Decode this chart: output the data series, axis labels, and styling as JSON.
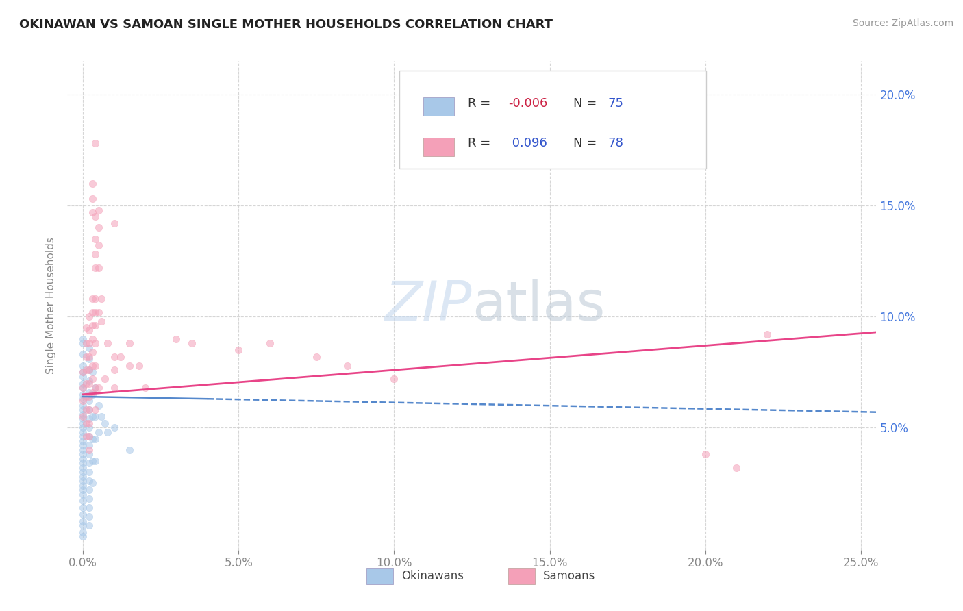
{
  "title": "OKINAWAN VS SAMOAN SINGLE MOTHER HOUSEHOLDS CORRELATION CHART",
  "source": "Source: ZipAtlas.com",
  "ylabel": "Single Mother Households",
  "legend_labels": [
    "Okinawans",
    "Samoans"
  ],
  "okinawan_color": "#a8c8e8",
  "samoan_color": "#f4a0b8",
  "okinawan_line_color": "#5588cc",
  "samoan_line_color": "#e84488",
  "title_color": "#222222",
  "source_color": "#999999",
  "legend_text_color": "#3355cc",
  "legend_rvalue_color": "#cc2244",
  "background_color": "#ffffff",
  "plot_bg_color": "#ffffff",
  "xlim": [
    -0.005,
    0.255
  ],
  "ylim": [
    -0.005,
    0.215
  ],
  "xticks": [
    0.0,
    0.05,
    0.1,
    0.15,
    0.2,
    0.25
  ],
  "yticks": [
    0.05,
    0.1,
    0.15,
    0.2
  ],
  "xticklabels": [
    "0.0%",
    "5.0%",
    "10.0%",
    "15.0%",
    "20.0%",
    "25.0%"
  ],
  "yticklabels": [
    "5.0%",
    "10.0%",
    "15.0%",
    "20.0%"
  ],
  "right_yticklabels": [
    "5.0%",
    "10.0%",
    "15.0%",
    "20.0%"
  ],
  "watermark_zip": "ZIP",
  "watermark_atlas": "atlas",
  "ok_line_solid": [
    [
      0.0,
      0.064
    ],
    [
      0.04,
      0.063
    ]
  ],
  "ok_line_dash": [
    [
      0.04,
      0.063
    ],
    [
      0.255,
      0.057
    ]
  ],
  "sa_line": [
    [
      0.0,
      0.065
    ],
    [
      0.255,
      0.093
    ]
  ],
  "grid_color": "#cccccc",
  "tick_color": "#888888",
  "ytick_color": "#4477dd",
  "tick_fontsize": 12,
  "title_fontsize": 13,
  "source_fontsize": 10,
  "ylabel_fontsize": 11,
  "dot_size": 55,
  "dot_alpha": 0.55,
  "okinawan_scatter": [
    [
      0.0,
      0.09
    ],
    [
      0.0,
      0.088
    ],
    [
      0.0,
      0.083
    ],
    [
      0.0,
      0.078
    ],
    [
      0.0,
      0.075
    ],
    [
      0.0,
      0.073
    ],
    [
      0.0,
      0.07
    ],
    [
      0.0,
      0.068
    ],
    [
      0.0,
      0.065
    ],
    [
      0.0,
      0.063
    ],
    [
      0.0,
      0.06
    ],
    [
      0.0,
      0.058
    ],
    [
      0.0,
      0.056
    ],
    [
      0.0,
      0.054
    ],
    [
      0.0,
      0.052
    ],
    [
      0.0,
      0.05
    ],
    [
      0.0,
      0.048
    ],
    [
      0.0,
      0.046
    ],
    [
      0.0,
      0.044
    ],
    [
      0.0,
      0.042
    ],
    [
      0.0,
      0.04
    ],
    [
      0.0,
      0.038
    ],
    [
      0.0,
      0.036
    ],
    [
      0.0,
      0.034
    ],
    [
      0.0,
      0.032
    ],
    [
      0.0,
      0.03
    ],
    [
      0.0,
      0.028
    ],
    [
      0.0,
      0.026
    ],
    [
      0.0,
      0.024
    ],
    [
      0.0,
      0.022
    ],
    [
      0.0,
      0.02
    ],
    [
      0.0,
      0.017
    ],
    [
      0.0,
      0.014
    ],
    [
      0.0,
      0.011
    ],
    [
      0.0,
      0.008
    ],
    [
      0.0,
      0.006
    ],
    [
      0.0,
      0.003
    ],
    [
      0.0,
      0.001
    ],
    [
      0.002,
      0.086
    ],
    [
      0.002,
      0.081
    ],
    [
      0.002,
      0.076
    ],
    [
      0.002,
      0.071
    ],
    [
      0.002,
      0.066
    ],
    [
      0.002,
      0.062
    ],
    [
      0.002,
      0.058
    ],
    [
      0.002,
      0.054
    ],
    [
      0.002,
      0.05
    ],
    [
      0.002,
      0.046
    ],
    [
      0.002,
      0.042
    ],
    [
      0.002,
      0.038
    ],
    [
      0.002,
      0.034
    ],
    [
      0.002,
      0.03
    ],
    [
      0.002,
      0.026
    ],
    [
      0.002,
      0.022
    ],
    [
      0.002,
      0.018
    ],
    [
      0.002,
      0.014
    ],
    [
      0.002,
      0.01
    ],
    [
      0.002,
      0.006
    ],
    [
      0.003,
      0.075
    ],
    [
      0.003,
      0.065
    ],
    [
      0.003,
      0.055
    ],
    [
      0.003,
      0.045
    ],
    [
      0.003,
      0.035
    ],
    [
      0.003,
      0.025
    ],
    [
      0.004,
      0.068
    ],
    [
      0.004,
      0.055
    ],
    [
      0.004,
      0.045
    ],
    [
      0.004,
      0.035
    ],
    [
      0.005,
      0.06
    ],
    [
      0.005,
      0.048
    ],
    [
      0.006,
      0.055
    ],
    [
      0.007,
      0.052
    ],
    [
      0.008,
      0.048
    ],
    [
      0.01,
      0.05
    ],
    [
      0.015,
      0.04
    ]
  ],
  "samoan_scatter": [
    [
      0.0,
      0.075
    ],
    [
      0.0,
      0.068
    ],
    [
      0.0,
      0.062
    ],
    [
      0.0,
      0.055
    ],
    [
      0.001,
      0.095
    ],
    [
      0.001,
      0.088
    ],
    [
      0.001,
      0.082
    ],
    [
      0.001,
      0.076
    ],
    [
      0.001,
      0.07
    ],
    [
      0.001,
      0.064
    ],
    [
      0.001,
      0.058
    ],
    [
      0.001,
      0.052
    ],
    [
      0.001,
      0.046
    ],
    [
      0.002,
      0.1
    ],
    [
      0.002,
      0.094
    ],
    [
      0.002,
      0.088
    ],
    [
      0.002,
      0.082
    ],
    [
      0.002,
      0.076
    ],
    [
      0.002,
      0.07
    ],
    [
      0.002,
      0.064
    ],
    [
      0.002,
      0.058
    ],
    [
      0.002,
      0.052
    ],
    [
      0.002,
      0.046
    ],
    [
      0.002,
      0.04
    ],
    [
      0.003,
      0.16
    ],
    [
      0.003,
      0.153
    ],
    [
      0.003,
      0.147
    ],
    [
      0.003,
      0.108
    ],
    [
      0.003,
      0.102
    ],
    [
      0.003,
      0.096
    ],
    [
      0.003,
      0.09
    ],
    [
      0.003,
      0.084
    ],
    [
      0.003,
      0.078
    ],
    [
      0.003,
      0.072
    ],
    [
      0.003,
      0.066
    ],
    [
      0.004,
      0.178
    ],
    [
      0.004,
      0.145
    ],
    [
      0.004,
      0.135
    ],
    [
      0.004,
      0.128
    ],
    [
      0.004,
      0.122
    ],
    [
      0.004,
      0.108
    ],
    [
      0.004,
      0.102
    ],
    [
      0.004,
      0.096
    ],
    [
      0.004,
      0.088
    ],
    [
      0.004,
      0.078
    ],
    [
      0.004,
      0.068
    ],
    [
      0.004,
      0.058
    ],
    [
      0.005,
      0.148
    ],
    [
      0.005,
      0.14
    ],
    [
      0.005,
      0.132
    ],
    [
      0.005,
      0.122
    ],
    [
      0.005,
      0.102
    ],
    [
      0.005,
      0.068
    ],
    [
      0.006,
      0.108
    ],
    [
      0.006,
      0.098
    ],
    [
      0.007,
      0.072
    ],
    [
      0.008,
      0.088
    ],
    [
      0.01,
      0.142
    ],
    [
      0.01,
      0.082
    ],
    [
      0.01,
      0.076
    ],
    [
      0.01,
      0.068
    ],
    [
      0.012,
      0.082
    ],
    [
      0.015,
      0.088
    ],
    [
      0.015,
      0.078
    ],
    [
      0.018,
      0.078
    ],
    [
      0.02,
      0.068
    ],
    [
      0.03,
      0.09
    ],
    [
      0.035,
      0.088
    ],
    [
      0.05,
      0.085
    ],
    [
      0.06,
      0.088
    ],
    [
      0.075,
      0.082
    ],
    [
      0.085,
      0.078
    ],
    [
      0.1,
      0.072
    ],
    [
      0.2,
      0.038
    ],
    [
      0.21,
      0.032
    ],
    [
      0.22,
      0.092
    ]
  ]
}
